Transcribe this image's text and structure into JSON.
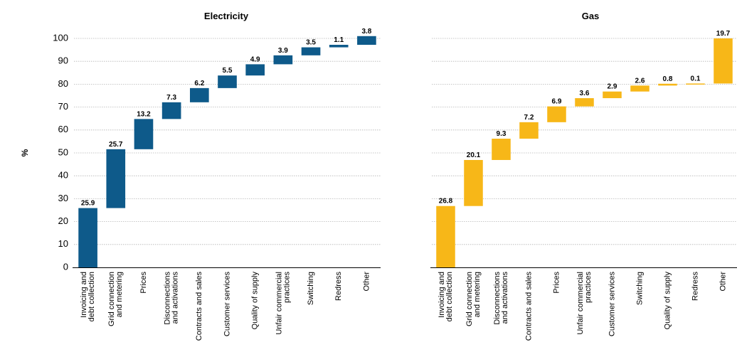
{
  "y_axis_label": "%",
  "chart_data": [
    {
      "type": "waterfall",
      "title": "Electricity",
      "ylabel": "%",
      "ylim": [
        0,
        100
      ],
      "yticks": [
        0,
        10,
        20,
        30,
        40,
        50,
        60,
        70,
        80,
        90,
        100
      ],
      "grid": true,
      "color": "#0e5a8a",
      "categories": [
        "Invoicing and debt collection",
        "Grid connection and metering",
        "Prices",
        "Disconnections and activations",
        "Contracts and sales",
        "Customer services",
        "Quality of supply",
        "Unfair commercial practices",
        "Switching",
        "Redress",
        "Other"
      ],
      "values": [
        25.9,
        25.7,
        13.2,
        7.3,
        6.2,
        5.5,
        4.9,
        3.9,
        3.5,
        1.1,
        3.8
      ]
    },
    {
      "type": "waterfall",
      "title": "Gas",
      "ylim": [
        0,
        100
      ],
      "grid": true,
      "color": "#f7b718",
      "categories": [
        "Invoicing and debt collection",
        "Grid connection and metering",
        "Disconnections and activations",
        "Contracts and sales",
        "Prices",
        "Unfair commercial practices",
        "Customer services",
        "Switching",
        "Quality of supply",
        "Redress",
        "Other"
      ],
      "values": [
        26.8,
        20.1,
        9.3,
        7.2,
        6.9,
        3.6,
        2.9,
        2.6,
        0.8,
        0.1,
        19.7
      ]
    }
  ]
}
